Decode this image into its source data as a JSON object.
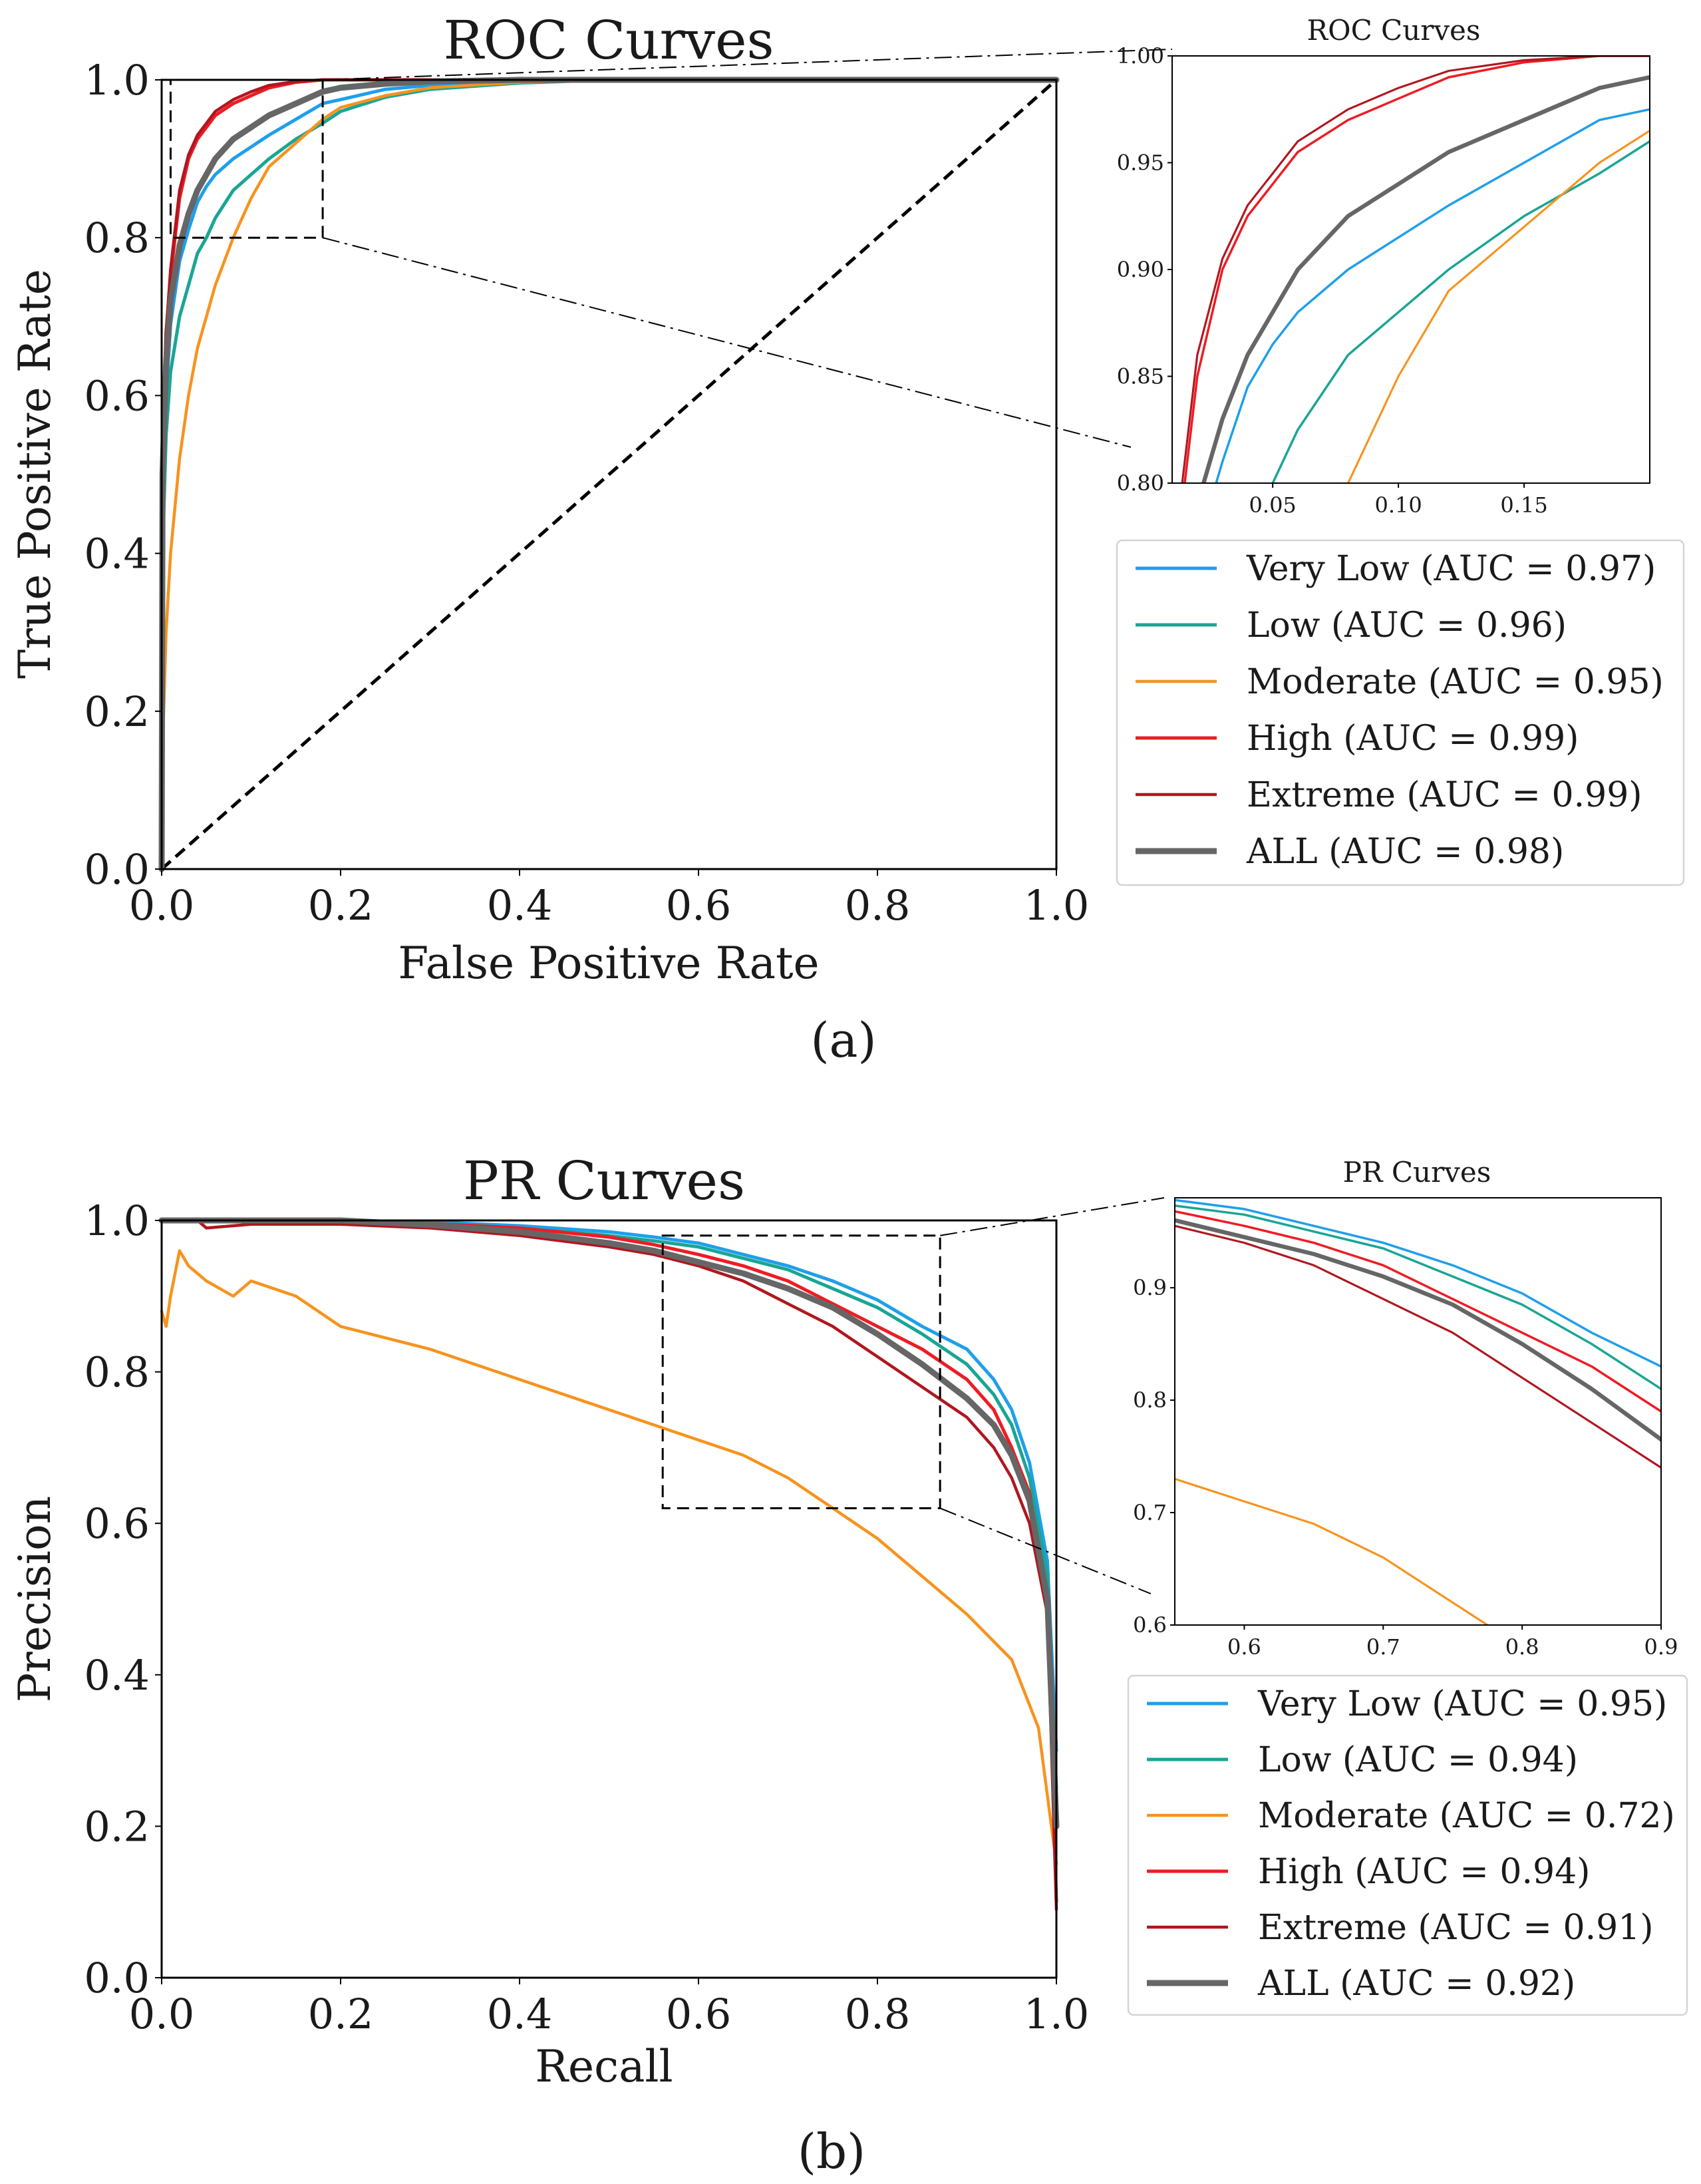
{
  "colors": {
    "very_low": "#1f9fea",
    "low": "#1aa595",
    "moderate": "#f7931e",
    "high": "#ee1c24",
    "extreme": "#b0171f",
    "all": "#666666"
  },
  "panel_a": {
    "tag": "(a)",
    "main_title": "ROC Curves",
    "xlabel": "False Positive Rate",
    "ylabel": "True Positive Rate",
    "inset_title": "ROC Curves",
    "legend": [
      "Very Low (AUC = 0.97)",
      "Low (AUC = 0.96)",
      "Moderate (AUC = 0.95)",
      "High (AUC = 0.99)",
      "Extreme (AUC = 0.99)",
      "ALL (AUC = 0.98)"
    ]
  },
  "panel_b": {
    "tag": "(b)",
    "main_title": "PR Curves",
    "xlabel": "Recall",
    "ylabel": "Precision",
    "inset_title": "PR Curves",
    "legend": [
      "Very Low (AUC = 0.95)",
      "Low (AUC = 0.94)",
      "Moderate (AUC = 0.72)",
      "High (AUC = 0.94)",
      "Extreme (AUC = 0.91)",
      "ALL (AUC = 0.92)"
    ]
  },
  "chart_data": [
    {
      "type": "line",
      "title": "ROC Curves",
      "xlabel": "False Positive Rate",
      "ylabel": "True Positive Rate",
      "xlim": [
        0,
        1
      ],
      "ylim": [
        0,
        1
      ],
      "xticks": [
        "0.0",
        "0.2",
        "0.4",
        "0.6",
        "0.8",
        "1.0"
      ],
      "yticks": [
        "0.0",
        "0.2",
        "0.4",
        "0.6",
        "0.8",
        "1.0"
      ],
      "grid": false,
      "legend_position": "right, outside",
      "diagonal_reference": true,
      "zoom_region": {
        "x": [
          0.01,
          0.18
        ],
        "y": [
          0.8,
          1.0
        ]
      },
      "series": [
        {
          "name": "Very Low (AUC = 0.97)",
          "key": "very_low",
          "x": [
            0,
            0.001,
            0.005,
            0.01,
            0.02,
            0.03,
            0.04,
            0.05,
            0.06,
            0.08,
            0.1,
            0.12,
            0.15,
            0.18,
            0.2,
            0.25,
            0.3,
            0.4,
            0.5,
            0.6,
            0.8,
            1.0
          ],
          "y": [
            0,
            0.45,
            0.6,
            0.69,
            0.77,
            0.81,
            0.845,
            0.865,
            0.88,
            0.9,
            0.915,
            0.93,
            0.95,
            0.97,
            0.975,
            0.988,
            0.993,
            0.998,
            1,
            1,
            1,
            1
          ]
        },
        {
          "name": "Low (AUC = 0.96)",
          "key": "low",
          "x": [
            0,
            0.001,
            0.005,
            0.01,
            0.02,
            0.03,
            0.04,
            0.05,
            0.06,
            0.08,
            0.1,
            0.12,
            0.15,
            0.18,
            0.2,
            0.25,
            0.3,
            0.4,
            0.5,
            0.6,
            0.8,
            1.0
          ],
          "y": [
            0,
            0.4,
            0.55,
            0.63,
            0.7,
            0.74,
            0.78,
            0.8,
            0.825,
            0.86,
            0.88,
            0.9,
            0.925,
            0.945,
            0.96,
            0.978,
            0.988,
            0.996,
            1,
            1,
            1,
            1
          ]
        },
        {
          "name": "Moderate (AUC = 0.95)",
          "key": "moderate",
          "x": [
            0,
            0.001,
            0.005,
            0.01,
            0.02,
            0.03,
            0.04,
            0.05,
            0.06,
            0.08,
            0.1,
            0.12,
            0.15,
            0.18,
            0.2,
            0.25,
            0.3,
            0.4,
            0.5,
            0.6,
            0.8,
            1.0
          ],
          "y": [
            0,
            0.15,
            0.3,
            0.4,
            0.52,
            0.6,
            0.66,
            0.7,
            0.74,
            0.8,
            0.85,
            0.89,
            0.92,
            0.95,
            0.965,
            0.98,
            0.99,
            0.997,
            1,
            1,
            1,
            1
          ]
        },
        {
          "name": "High (AUC = 0.99)",
          "key": "high",
          "x": [
            0,
            0.001,
            0.005,
            0.01,
            0.02,
            0.03,
            0.04,
            0.05,
            0.06,
            0.08,
            0.1,
            0.12,
            0.15,
            0.18,
            0.2,
            0.25,
            0.3,
            0.4,
            0.5,
            0.6,
            0.8,
            1.0
          ],
          "y": [
            0,
            0.55,
            0.68,
            0.75,
            0.85,
            0.9,
            0.925,
            0.94,
            0.955,
            0.97,
            0.98,
            0.99,
            0.997,
            1,
            1,
            1,
            1,
            1,
            1,
            1,
            1,
            1
          ]
        },
        {
          "name": "Extreme (AUC = 0.99)",
          "key": "extreme",
          "x": [
            0,
            0.001,
            0.005,
            0.01,
            0.02,
            0.03,
            0.04,
            0.05,
            0.06,
            0.08,
            0.1,
            0.12,
            0.15,
            0.18,
            0.2,
            0.25,
            0.3,
            0.4,
            0.5,
            0.6,
            0.8,
            1.0
          ],
          "y": [
            0,
            0.55,
            0.68,
            0.76,
            0.86,
            0.905,
            0.93,
            0.945,
            0.96,
            0.975,
            0.985,
            0.993,
            0.998,
            1,
            1,
            1,
            1,
            1,
            1,
            1,
            1,
            1
          ]
        },
        {
          "name": "ALL (AUC = 0.98)",
          "key": "all",
          "x": [
            0,
            0.001,
            0.005,
            0.01,
            0.02,
            0.03,
            0.04,
            0.05,
            0.06,
            0.08,
            0.1,
            0.12,
            0.15,
            0.18,
            0.2,
            0.25,
            0.3,
            0.4,
            0.5,
            0.6,
            0.8,
            1.0
          ],
          "y": [
            0,
            0.5,
            0.64,
            0.72,
            0.79,
            0.83,
            0.86,
            0.88,
            0.9,
            0.925,
            0.94,
            0.955,
            0.97,
            0.985,
            0.99,
            0.995,
            0.998,
            1,
            1,
            1,
            1,
            1
          ]
        }
      ]
    },
    {
      "type": "line",
      "title": "ROC Curves",
      "xlim": [
        0.01,
        0.2
      ],
      "ylim": [
        0.8,
        1.0
      ],
      "xticks": [
        "0.05",
        "0.10",
        "0.15"
      ],
      "yticks": [
        "0.80",
        "0.85",
        "0.90",
        "0.95",
        "1.00"
      ],
      "grid": false,
      "note_series": "inset zoom of the main ROC chart (same series)"
    },
    {
      "type": "line",
      "title": "PR Curves",
      "xlabel": "Recall",
      "ylabel": "Precision",
      "xlim": [
        0,
        1
      ],
      "ylim": [
        0,
        1
      ],
      "xticks": [
        "0.0",
        "0.2",
        "0.4",
        "0.6",
        "0.8",
        "1.0"
      ],
      "yticks": [
        "0.0",
        "0.2",
        "0.4",
        "0.6",
        "0.8",
        "1.0"
      ],
      "grid": false,
      "legend_position": "right, outside",
      "zoom_region": {
        "x": [
          0.56,
          0.87
        ],
        "y": [
          0.62,
          0.98
        ]
      },
      "series": [
        {
          "name": "Very Low (AUC = 0.95)",
          "key": "very_low",
          "x": [
            0,
            0.05,
            0.1,
            0.2,
            0.3,
            0.4,
            0.5,
            0.55,
            0.6,
            0.65,
            0.7,
            0.75,
            0.8,
            0.85,
            0.9,
            0.93,
            0.95,
            0.97,
            0.99,
            1.0
          ],
          "y": [
            1,
            1,
            1,
            1,
            0.998,
            0.993,
            0.985,
            0.978,
            0.97,
            0.955,
            0.94,
            0.92,
            0.895,
            0.86,
            0.83,
            0.79,
            0.75,
            0.68,
            0.55,
            0.3
          ]
        },
        {
          "name": "Low (AUC = 0.94)",
          "key": "low",
          "x": [
            0,
            0.05,
            0.1,
            0.2,
            0.3,
            0.4,
            0.5,
            0.55,
            0.6,
            0.65,
            0.7,
            0.75,
            0.8,
            0.85,
            0.9,
            0.93,
            0.95,
            0.97,
            0.99,
            1.0
          ],
          "y": [
            1,
            1,
            1,
            1,
            0.997,
            0.99,
            0.98,
            0.973,
            0.965,
            0.95,
            0.935,
            0.91,
            0.885,
            0.85,
            0.81,
            0.77,
            0.73,
            0.66,
            0.53,
            0.25
          ]
        },
        {
          "name": "Moderate (AUC = 0.72)",
          "key": "moderate",
          "x": [
            0,
            0.005,
            0.01,
            0.02,
            0.03,
            0.05,
            0.08,
            0.1,
            0.15,
            0.2,
            0.3,
            0.4,
            0.5,
            0.55,
            0.6,
            0.65,
            0.7,
            0.75,
            0.8,
            0.85,
            0.9,
            0.95,
            0.98,
            1.0
          ],
          "y": [
            0.88,
            0.86,
            0.9,
            0.96,
            0.94,
            0.92,
            0.9,
            0.92,
            0.9,
            0.86,
            0.83,
            0.79,
            0.75,
            0.73,
            0.71,
            0.69,
            0.66,
            0.62,
            0.58,
            0.53,
            0.48,
            0.42,
            0.33,
            0.15
          ]
        },
        {
          "name": "High (AUC = 0.94)",
          "key": "high",
          "x": [
            0,
            0.05,
            0.1,
            0.2,
            0.3,
            0.4,
            0.5,
            0.55,
            0.6,
            0.65,
            0.7,
            0.75,
            0.8,
            0.85,
            0.9,
            0.93,
            0.95,
            0.97,
            0.99,
            1.0
          ],
          "y": [
            1,
            1,
            1,
            1,
            0.996,
            0.99,
            0.978,
            0.968,
            0.955,
            0.94,
            0.92,
            0.89,
            0.86,
            0.83,
            0.79,
            0.75,
            0.7,
            0.64,
            0.5,
            0.1
          ]
        },
        {
          "name": "Extreme (AUC = 0.91)",
          "key": "extreme",
          "x": [
            0,
            0.04,
            0.05,
            0.1,
            0.2,
            0.3,
            0.4,
            0.5,
            0.55,
            0.6,
            0.65,
            0.7,
            0.75,
            0.8,
            0.85,
            0.9,
            0.93,
            0.95,
            0.97,
            0.99,
            1.0
          ],
          "y": [
            1,
            1,
            0.99,
            0.995,
            0.995,
            0.99,
            0.98,
            0.965,
            0.955,
            0.94,
            0.92,
            0.89,
            0.86,
            0.82,
            0.78,
            0.74,
            0.7,
            0.66,
            0.6,
            0.48,
            0.09
          ]
        },
        {
          "name": "ALL (AUC = 0.92)",
          "key": "all",
          "x": [
            0,
            0.05,
            0.1,
            0.2,
            0.3,
            0.4,
            0.5,
            0.55,
            0.6,
            0.65,
            0.7,
            0.75,
            0.8,
            0.85,
            0.9,
            0.93,
            0.95,
            0.97,
            0.99,
            1.0
          ],
          "y": [
            1,
            1,
            1,
            1,
            0.994,
            0.985,
            0.97,
            0.96,
            0.945,
            0.93,
            0.91,
            0.885,
            0.85,
            0.81,
            0.765,
            0.73,
            0.69,
            0.63,
            0.5,
            0.2
          ]
        }
      ]
    },
    {
      "type": "line",
      "title": "PR Curves",
      "xlim": [
        0.55,
        0.9
      ],
      "ylim": [
        0.6,
        0.98
      ],
      "xticks": [
        "0.6",
        "0.7",
        "0.8",
        "0.9"
      ],
      "yticks": [
        "0.6",
        "0.7",
        "0.8",
        "0.9"
      ],
      "grid": false,
      "note_series": "inset zoom of the main PR chart (same series)"
    }
  ]
}
